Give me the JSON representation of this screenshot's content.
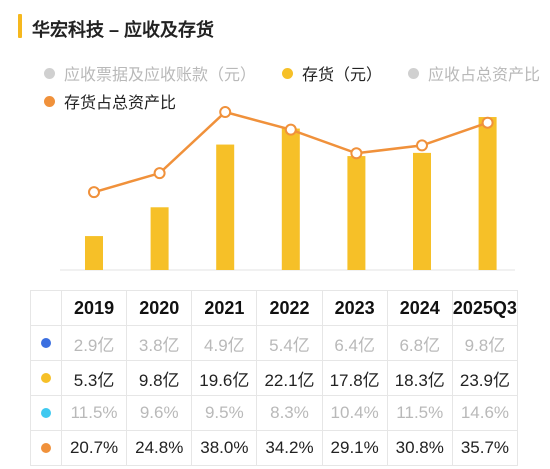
{
  "header": {
    "title": "华宏科技 – 应收及存货"
  },
  "legend": [
    {
      "name": "应收票据及应收账款（元）",
      "color": "#d0d0d0",
      "muted": true
    },
    {
      "name": "存货（元）",
      "color": "#f6c028",
      "muted": false
    },
    {
      "name": "应收占总资产比",
      "color": "#d0d0d0",
      "muted": true
    },
    {
      "name": "存货占总资产比",
      "color": "#f0913b",
      "muted": false
    }
  ],
  "chart_data": {
    "type": "bar",
    "categories": [
      "2019",
      "2020",
      "2021",
      "2022",
      "2023",
      "2024",
      "2025Q3"
    ],
    "series": [
      {
        "name": "应收票据及应收账款（元）",
        "values": [
          "2.9亿",
          "3.8亿",
          "4.9亿",
          "5.4亿",
          "6.4亿",
          "6.8亿",
          "9.8亿"
        ],
        "numeric": [
          2.9,
          3.8,
          4.9,
          5.4,
          6.4,
          6.8,
          9.8
        ],
        "unit": "亿",
        "visible": false
      },
      {
        "name": "存货（元）",
        "values": [
          "5.3亿",
          "9.8亿",
          "19.6亿",
          "22.1亿",
          "17.8亿",
          "18.3亿",
          "23.9亿"
        ],
        "numeric": [
          5.3,
          9.8,
          19.6,
          22.1,
          17.8,
          18.3,
          23.9
        ],
        "unit": "亿",
        "visible": true,
        "chart": "bar"
      },
      {
        "name": "应收占总资产比",
        "values": [
          "11.5%",
          "9.6%",
          "9.5%",
          "8.3%",
          "10.4%",
          "11.5%",
          "14.6%"
        ],
        "numeric": [
          11.5,
          9.6,
          9.5,
          8.3,
          10.4,
          11.5,
          14.6
        ],
        "unit": "%",
        "visible": false
      },
      {
        "name": "存货占总资产比",
        "values": [
          "20.7%",
          "24.8%",
          "38.0%",
          "34.2%",
          "29.1%",
          "30.8%",
          "35.7%"
        ],
        "numeric": [
          20.7,
          24.8,
          38.0,
          34.2,
          29.1,
          30.8,
          35.7
        ],
        "unit": "%",
        "visible": true,
        "chart": "line"
      }
    ],
    "table_key_colors": [
      "#3b6fe0",
      "#f6c028",
      "#3fc9f0",
      "#f0913b"
    ],
    "bar_color": "#f6c028",
    "line_color": "#f0913b"
  }
}
